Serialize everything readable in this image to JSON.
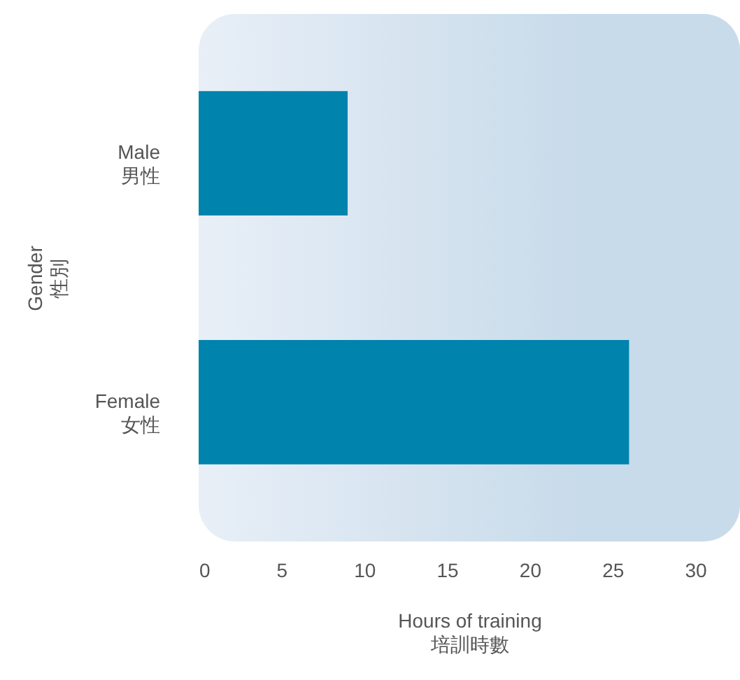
{
  "chart_data": {
    "type": "bar",
    "orientation": "horizontal",
    "categories": [
      "Male\n男性",
      "Female\n女性"
    ],
    "values": [
      9,
      26
    ],
    "color": "#0083ad",
    "xlabel": "Hours of training\n培訓時數",
    "ylabel": "Gender\n性別",
    "xlim": [
      0,
      32.7
    ],
    "xticks": [
      0,
      5,
      10,
      15,
      20,
      25,
      30
    ],
    "grid": false
  }
}
